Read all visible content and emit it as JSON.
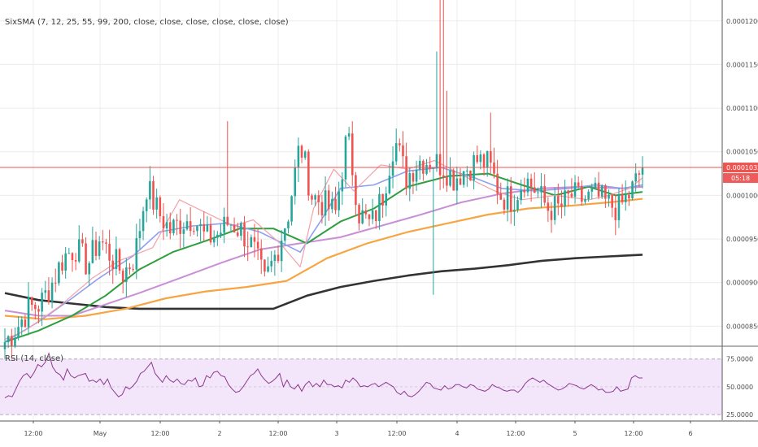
{
  "chart_data": [
    {
      "type": "candlestick",
      "legend": "SixSMA (7, 12, 25, 55, 99, 200, close, close, close, close, close, close)",
      "y_ticks": [
        "0.0001200",
        "0.0001150",
        "0.0001100",
        "0.0001050",
        "0.0001000",
        "0.0000950",
        "0.0000900",
        "0.0000850"
      ],
      "y_tick_values": [
        0.00012,
        0.000115,
        0.00011,
        0.000105,
        0.0001,
        9.5e-05,
        9e-05,
        8.5e-05
      ],
      "ylim": [
        8.28e-05,
        0.0001224
      ],
      "x_ticks": [
        "12:00",
        "May",
        "12:00",
        "2",
        "12:00",
        "3",
        "12:00",
        "4",
        "12:00",
        "5",
        "12:00",
        "6"
      ],
      "last_price": "0.0001032",
      "last_price_value": 0.0001032,
      "countdown": "05:18",
      "colors": {
        "up": "#26a69a",
        "down": "#ef5350",
        "sma7": "#f4a0a8",
        "sma12": "#8fa0f0",
        "sma25": "#2e9e3e",
        "sma55": "#c98fd6",
        "sma99": "#f7a542",
        "sma200": "#333333",
        "price_line": "#ef5350",
        "rsi": "#8e3a8e"
      },
      "ohlc_anchors": [
        [
          8.32e-05,
          8.48e-05
        ],
        [
          8.48e-05,
          8.7e-05
        ],
        [
          8.7e-05,
          8.75e-05
        ],
        [
          8.75e-05,
          9e-05
        ],
        [
          9e-05,
          9.3e-05
        ],
        [
          9.3e-05,
          9.4e-05
        ],
        [
          9.4e-05,
          9.2e-05
        ],
        [
          9.2e-05,
          9.5e-05
        ],
        [
          9.5e-05,
          9.3e-05
        ],
        [
          9.3e-05,
          9.1e-05
        ],
        [
          9.1e-05,
          9.3e-05
        ],
        [
          9.3e-05,
          0.000101
        ],
        [
          0.000101,
          9.8e-05
        ],
        [
          9.8e-05,
          9.6e-05
        ],
        [
          9.6e-05,
          9.7e-05
        ],
        [
          9.7e-05,
          9.75e-05
        ],
        [
          9.75e-05,
          9.5e-05
        ],
        [
          9.5e-05,
          9.55e-05
        ],
        [
          9.55e-05,
          9.7e-05
        ],
        [
          9.7e-05,
          9.6e-05
        ],
        [
          9.6e-05,
          9.4e-05
        ],
        [
          9.4e-05,
          9e-05
        ],
        [
          9e-05,
          9.35e-05
        ],
        [
          9.35e-05,
          9.8e-05
        ],
        [
          9.8e-05,
          0.000106
        ],
        [
          0.000106,
          0.0001
        ],
        [
          0.0001,
          9.9e-05
        ],
        [
          9.9e-05,
          9.8e-05
        ],
        [
          9.8e-05,
          0.000107
        ],
        [
          0.000107,
          9.8e-05
        ],
        [
          9.8e-05,
          9.65e-05
        ],
        [
          9.65e-05,
          0.0001
        ],
        [
          0.0001,
          0.0001065
        ],
        [
          0.0001065,
          0.000102
        ],
        [
          0.000102,
          0.000104
        ],
        [
          0.000104,
          0.000104
        ],
        [
          0.000104,
          0.0001035
        ],
        [
          0.0001035,
          0.000102
        ],
        [
          0.000102,
          0.000103
        ],
        [
          0.000103,
          0.000104
        ],
        [
          0.000104,
          0.0001035
        ],
        [
          0.0001035,
          0.0001
        ],
        [
          0.0001,
          9.95e-05
        ],
        [
          9.95e-05,
          0.000102
        ],
        [
          0.000102,
          0.0001005
        ],
        [
          0.0001005,
          9.85e-05
        ],
        [
          9.85e-05,
          9.85e-05
        ],
        [
          9.85e-05,
          0.0001
        ],
        [
          0.0001,
          9.95e-05
        ],
        [
          9.95e-05,
          0.0001
        ],
        [
          0.0001,
          9.9e-05
        ],
        [
          9.9e-05,
          9.85e-05
        ],
        [
          9.85e-05,
          0.0001003
        ],
        [
          0.0001003,
          0.0001032
        ],
        [
          0.0001032,
          0.0001032
        ]
      ],
      "sma7": [
        [
          0,
          8.35e-05
        ],
        [
          0.03,
          8.45e-05
        ],
        [
          0.08,
          8.72e-05
        ],
        [
          0.13,
          9.05e-05
        ],
        [
          0.17,
          9.25e-05
        ],
        [
          0.22,
          9.4e-05
        ],
        [
          0.26,
          9.95e-05
        ],
        [
          0.3,
          9.8e-05
        ],
        [
          0.34,
          9.65e-05
        ],
        [
          0.37,
          9.72e-05
        ],
        [
          0.41,
          9.45e-05
        ],
        [
          0.44,
          9.18e-05
        ],
        [
          0.46,
          9.85e-05
        ],
        [
          0.49,
          0.000103
        ],
        [
          0.52,
          0.0001005
        ],
        [
          0.56,
          0.0001035
        ],
        [
          0.6,
          0.000103
        ],
        [
          0.64,
          0.000104
        ],
        [
          0.69,
          0.000102
        ],
        [
          0.73,
          0.0001005
        ],
        [
          0.77,
          9.95e-05
        ],
        [
          0.82,
          0.0001
        ],
        [
          0.87,
          9.95e-05
        ],
        [
          0.9,
          0.0001
        ],
        [
          0.93,
          0.0001008
        ],
        [
          0.95,
          0.000102
        ]
      ],
      "sma12": [
        [
          0,
          8.32e-05
        ],
        [
          0.05,
          8.55e-05
        ],
        [
          0.1,
          8.82e-05
        ],
        [
          0.14,
          9.05e-05
        ],
        [
          0.19,
          9.3e-05
        ],
        [
          0.23,
          9.58e-05
        ],
        [
          0.28,
          9.65e-05
        ],
        [
          0.33,
          9.68e-05
        ],
        [
          0.38,
          9.58e-05
        ],
        [
          0.44,
          9.35e-05
        ],
        [
          0.47,
          9.7e-05
        ],
        [
          0.5,
          0.0001008
        ],
        [
          0.55,
          0.0001012
        ],
        [
          0.6,
          0.0001028
        ],
        [
          0.65,
          0.0001032
        ],
        [
          0.7,
          0.000102
        ],
        [
          0.74,
          0.0001008
        ],
        [
          0.79,
          0.0001005
        ],
        [
          0.84,
          0.0001008
        ],
        [
          0.88,
          0.0001012
        ],
        [
          0.92,
          0.0001008
        ],
        [
          0.95,
          0.0001012
        ]
      ],
      "sma25": [
        [
          0,
          8.32e-05
        ],
        [
          0.05,
          8.45e-05
        ],
        [
          0.1,
          8.62e-05
        ],
        [
          0.15,
          8.85e-05
        ],
        [
          0.2,
          9.15e-05
        ],
        [
          0.25,
          9.35e-05
        ],
        [
          0.3,
          9.48e-05
        ],
        [
          0.35,
          9.62e-05
        ],
        [
          0.4,
          9.62e-05
        ],
        [
          0.45,
          9.45e-05
        ],
        [
          0.5,
          9.7e-05
        ],
        [
          0.55,
          9.85e-05
        ],
        [
          0.6,
          0.000101
        ],
        [
          0.66,
          0.0001022
        ],
        [
          0.72,
          0.0001025
        ],
        [
          0.77,
          0.0001012
        ],
        [
          0.82,
          0.0001
        ],
        [
          0.87,
          0.000101
        ],
        [
          0.91,
          0.0001
        ],
        [
          0.95,
          0.0001004
        ]
      ],
      "sma55": [
        [
          0,
          8.68e-05
        ],
        [
          0.05,
          8.62e-05
        ],
        [
          0.1,
          8.62e-05
        ],
        [
          0.15,
          8.75e-05
        ],
        [
          0.2,
          8.88e-05
        ],
        [
          0.26,
          9.05e-05
        ],
        [
          0.32,
          9.22e-05
        ],
        [
          0.38,
          9.38e-05
        ],
        [
          0.44,
          9.45e-05
        ],
        [
          0.5,
          9.52e-05
        ],
        [
          0.56,
          9.65e-05
        ],
        [
          0.62,
          9.78e-05
        ],
        [
          0.68,
          9.92e-05
        ],
        [
          0.74,
          0.0001002
        ],
        [
          0.8,
          0.0001008
        ],
        [
          0.86,
          0.000101
        ],
        [
          0.92,
          0.0001008
        ],
        [
          0.95,
          0.000101
        ]
      ],
      "sma99": [
        [
          0,
          8.62e-05
        ],
        [
          0.06,
          8.58e-05
        ],
        [
          0.12,
          8.62e-05
        ],
        [
          0.18,
          8.7e-05
        ],
        [
          0.24,
          8.82e-05
        ],
        [
          0.3,
          8.9e-05
        ],
        [
          0.36,
          8.95e-05
        ],
        [
          0.42,
          9.02e-05
        ],
        [
          0.48,
          9.28e-05
        ],
        [
          0.54,
          9.45e-05
        ],
        [
          0.6,
          9.58e-05
        ],
        [
          0.66,
          9.68e-05
        ],
        [
          0.72,
          9.78e-05
        ],
        [
          0.78,
          9.85e-05
        ],
        [
          0.84,
          9.88e-05
        ],
        [
          0.9,
          9.92e-05
        ],
        [
          0.95,
          9.96e-05
        ]
      ],
      "sma200": [
        [
          0,
          8.88e-05
        ],
        [
          0.05,
          8.8e-05
        ],
        [
          0.1,
          8.76e-05
        ],
        [
          0.15,
          8.72e-05
        ],
        [
          0.2,
          8.7e-05
        ],
        [
          0.25,
          8.7e-05
        ],
        [
          0.3,
          8.7e-05
        ],
        [
          0.35,
          8.7e-05
        ],
        [
          0.4,
          8.7e-05
        ],
        [
          0.45,
          8.85e-05
        ],
        [
          0.5,
          8.95e-05
        ],
        [
          0.55,
          9.02e-05
        ],
        [
          0.6,
          9.08e-05
        ],
        [
          0.65,
          9.13e-05
        ],
        [
          0.7,
          9.16e-05
        ],
        [
          0.75,
          9.2e-05
        ],
        [
          0.8,
          9.25e-05
        ],
        [
          0.85,
          9.28e-05
        ],
        [
          0.9,
          9.3e-05
        ],
        [
          0.95,
          9.32e-05
        ]
      ]
    },
    {
      "type": "line",
      "legend": "RSI (14, close)",
      "y_ticks": [
        "75.0000",
        "50.0000",
        "25.0000"
      ],
      "y_tick_values": [
        75,
        50,
        25
      ],
      "ylim": [
        20,
        85
      ],
      "band": [
        25,
        75
      ],
      "values": [
        40,
        42,
        41,
        48,
        55,
        60,
        62,
        58,
        63,
        70,
        68,
        72,
        80,
        68,
        63,
        61,
        56,
        66,
        60,
        58,
        60,
        61,
        62,
        55,
        56,
        54,
        57,
        52,
        57,
        49,
        45,
        41,
        43,
        50,
        48,
        51,
        55,
        62,
        64,
        68,
        72,
        62,
        58,
        54,
        60,
        56,
        54,
        57,
        53,
        52,
        56,
        55,
        58,
        50,
        51,
        60,
        58,
        63,
        64,
        60,
        59,
        52,
        48,
        45,
        46,
        50,
        55,
        60,
        62,
        66,
        60,
        56,
        53,
        55,
        58,
        62,
        50,
        56,
        50,
        48,
        52,
        46,
        52,
        55,
        50,
        53,
        50,
        56,
        52,
        52,
        50,
        51,
        49,
        56,
        54,
        58,
        55,
        50,
        51,
        50,
        52,
        53,
        50,
        52,
        54,
        52,
        50,
        45,
        43,
        46,
        42,
        41,
        43,
        46,
        50,
        54,
        53,
        49,
        48,
        47,
        51,
        48,
        49,
        52,
        52,
        50,
        49,
        52,
        51,
        48,
        47,
        46,
        48,
        52,
        50,
        49,
        47,
        46,
        47,
        47,
        45,
        48,
        53,
        56,
        58,
        56,
        54,
        56,
        53,
        51,
        49,
        47,
        48,
        50,
        53,
        52,
        51,
        49,
        48,
        50,
        52,
        50,
        47,
        48,
        45,
        45,
        46,
        50,
        46,
        47,
        48,
        58,
        60,
        58,
        58
      ]
    }
  ]
}
